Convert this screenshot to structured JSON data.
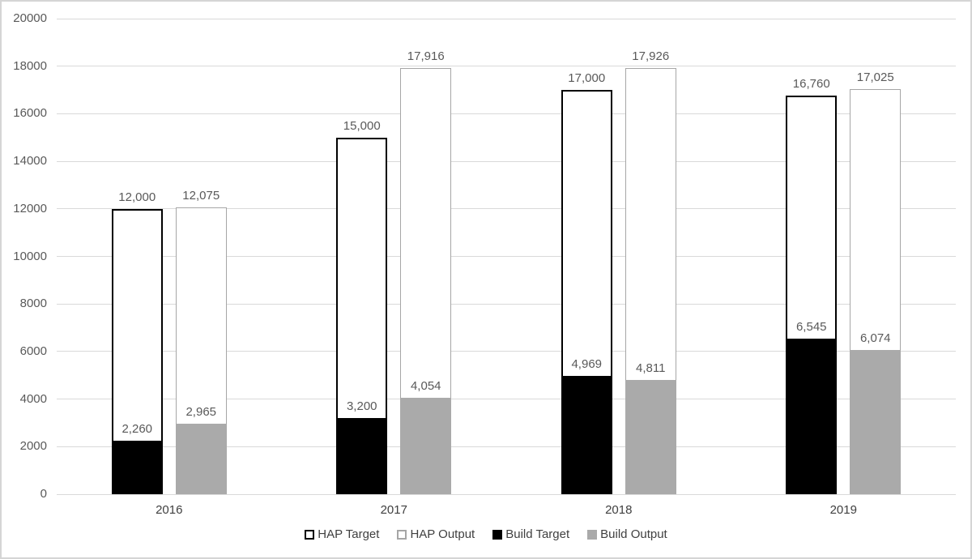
{
  "chart_data": {
    "type": "bar",
    "variant": "overlapped-columns",
    "title": "",
    "xlabel": "",
    "ylabel": "",
    "categories": [
      "2016",
      "2017",
      "2018",
      "2019"
    ],
    "series": [
      {
        "name": "HAP Target",
        "style": "outline-black",
        "values": [
          12000,
          15000,
          17000,
          16760
        ],
        "labels": [
          "12,000",
          "15,000",
          "17,000",
          "16,760"
        ]
      },
      {
        "name": "HAP Output",
        "style": "outline-gray",
        "values": [
          12075,
          17916,
          17926,
          17025
        ],
        "labels": [
          "12,075",
          "17,916",
          "17,926",
          "17,025"
        ]
      },
      {
        "name": "Build Target",
        "style": "fill-black",
        "values": [
          2260,
          3200,
          4969,
          6545
        ],
        "labels": [
          "2,260",
          "3,200",
          "4,969",
          "6,545"
        ]
      },
      {
        "name": "Build Output",
        "style": "fill-gray",
        "values": [
          2965,
          4054,
          4811,
          6074
        ],
        "labels": [
          "2,965",
          "4,054",
          "4,811",
          "6,074"
        ]
      }
    ],
    "pairs": [
      {
        "outer": 0,
        "inner": 2
      },
      {
        "outer": 1,
        "inner": 3
      }
    ],
    "ylim": [
      0,
      20000
    ],
    "ytick_step": 2000,
    "y_tick_labels": [
      "0",
      "2000",
      "4000",
      "6000",
      "8000",
      "10000",
      "12000",
      "14000",
      "16000",
      "18000",
      "20000"
    ],
    "grid": true,
    "legend_position": "bottom"
  },
  "colors": {
    "black": "#000000",
    "gray_fill": "#aaaaaa",
    "gray_outline": "#a6a6a6",
    "gridline": "#d9d9d9",
    "data_label": "#595959",
    "axis_label": "#404040",
    "background": "#ffffff"
  }
}
